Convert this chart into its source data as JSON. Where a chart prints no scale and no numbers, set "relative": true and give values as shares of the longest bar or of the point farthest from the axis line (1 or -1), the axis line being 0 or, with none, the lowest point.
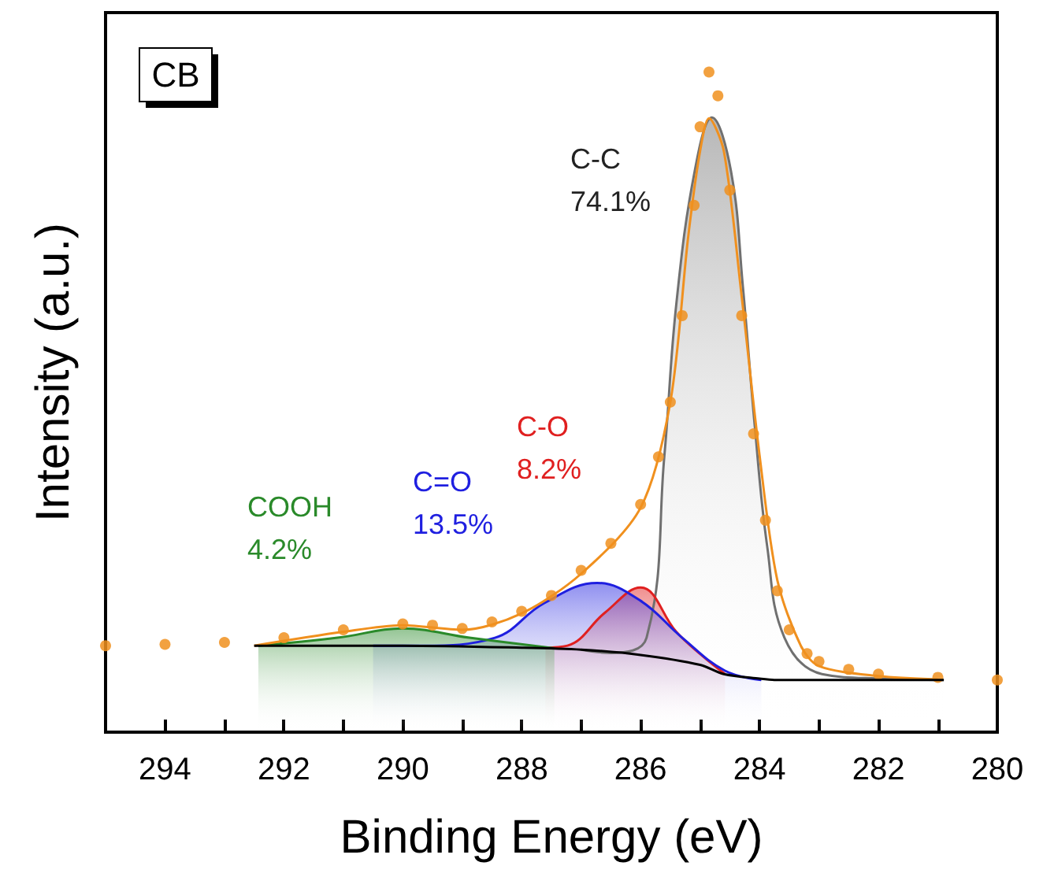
{
  "chart_data": {
    "type": "line",
    "xlabel": "Binding Energy (eV)",
    "ylabel": "Intensity (a.u.)",
    "relative": true,
    "grid": false,
    "legend": false,
    "tick_labels": "x",
    "xlim": [
      295,
      280
    ],
    "xticks": [
      294,
      {
        "value": 293,
        "label": null
      },
      292,
      {
        "value": 291,
        "label": null
      },
      290,
      {
        "value": 289,
        "label": null
      },
      288,
      {
        "value": 287,
        "label": null
      },
      286,
      {
        "value": 285,
        "label": null
      },
      284,
      {
        "value": 283,
        "label": null
      },
      282,
      {
        "value": 281,
        "label": null
      },
      280
    ],
    "series": [
      {
        "type": "scatter",
        "marker": "circle",
        "color": "#f0901e",
        "x": [
          295,
          294,
          293,
          292,
          291,
          290,
          289.5,
          289,
          288.5,
          288,
          287.5,
          287,
          286.5,
          286,
          285.7,
          285.5,
          285.3,
          285.1,
          285,
          284.85,
          284.7,
          284.5,
          284.3,
          284.1,
          283.9,
          283.7,
          283.5,
          283.2,
          283,
          282.5,
          282,
          281,
          280
        ],
        "values": [
          0.131,
          0.133,
          0.136,
          0.143,
          0.155,
          0.164,
          0.162,
          0.157,
          0.167,
          0.183,
          0.207,
          0.245,
          0.286,
          0.345,
          0.417,
          0.5,
          0.631,
          0.798,
          0.917,
          1.0,
          0.964,
          0.821,
          0.631,
          0.452,
          0.321,
          0.214,
          0.155,
          0.119,
          0.107,
          0.095,
          0.088,
          0.083,
          0.079
        ]
      },
      {
        "color": "#f0901e",
        "x": [
          292.5,
          291,
          290,
          289,
          288,
          287,
          286,
          285.5,
          285.2,
          285,
          284.85,
          284.6,
          284.3,
          284,
          283.7,
          283.3,
          283,
          282,
          281
        ],
        "values": [
          0.131,
          0.152,
          0.162,
          0.155,
          0.18,
          0.24,
          0.34,
          0.5,
          0.75,
          0.88,
          0.93,
          0.88,
          0.66,
          0.42,
          0.23,
          0.13,
          0.1,
          0.085,
          0.08
        ]
      },
      {
        "type": "area",
        "name": "C-C",
        "color": "#707070",
        "x": [
          287,
          286.5,
          285.9,
          285.6,
          285.4,
          285.09,
          284.8,
          284.48,
          284.28,
          284.08,
          283.87,
          283.58,
          282.95,
          281.9,
          280.9
        ],
        "values": [
          0.125,
          0.12,
          0.143,
          0.419,
          0.648,
          0.85,
          0.931,
          0.85,
          0.675,
          0.464,
          0.281,
          0.143,
          0.088,
          0.081,
          0.079
        ]
      },
      {
        "type": "area",
        "name": "C-O",
        "color": "#e02020",
        "x": [
          287.6,
          287.23,
          286.6,
          286.0,
          285.4,
          284.98,
          284.58
        ],
        "values": [
          0.128,
          0.131,
          0.181,
          0.219,
          0.152,
          0.117,
          0.088
        ]
      },
      {
        "type": "area",
        "name": "C=O",
        "color": "#1f1fe0",
        "x": [
          290.5,
          289.67,
          288.45,
          287.63,
          286.73,
          286.0,
          285.3,
          284.58,
          283.97
        ],
        "values": [
          0.131,
          0.131,
          0.143,
          0.195,
          0.226,
          0.199,
          0.143,
          0.093,
          0.079
        ]
      },
      {
        "type": "area",
        "name": "COOH",
        "color": "#2a8a2a",
        "x": [
          292.43,
          291.1,
          290.0,
          288.88,
          287.45
        ],
        "values": [
          0.131,
          0.143,
          0.157,
          0.143,
          0.127
        ]
      },
      {
        "type": "line",
        "color": "#000000",
        "x": [
          292.5,
          290,
          288,
          287,
          286,
          285,
          284.6,
          284,
          283.75,
          282,
          280.9
        ],
        "values": [
          0.131,
          0.131,
          0.128,
          0.125,
          0.117,
          0.102,
          0.088,
          0.081,
          0.079,
          0.079,
          0.079
        ]
      }
    ],
    "annotations": [
      "CB",
      "74.1%",
      "8.2%",
      "13.5%",
      "4.2%"
    ]
  }
}
